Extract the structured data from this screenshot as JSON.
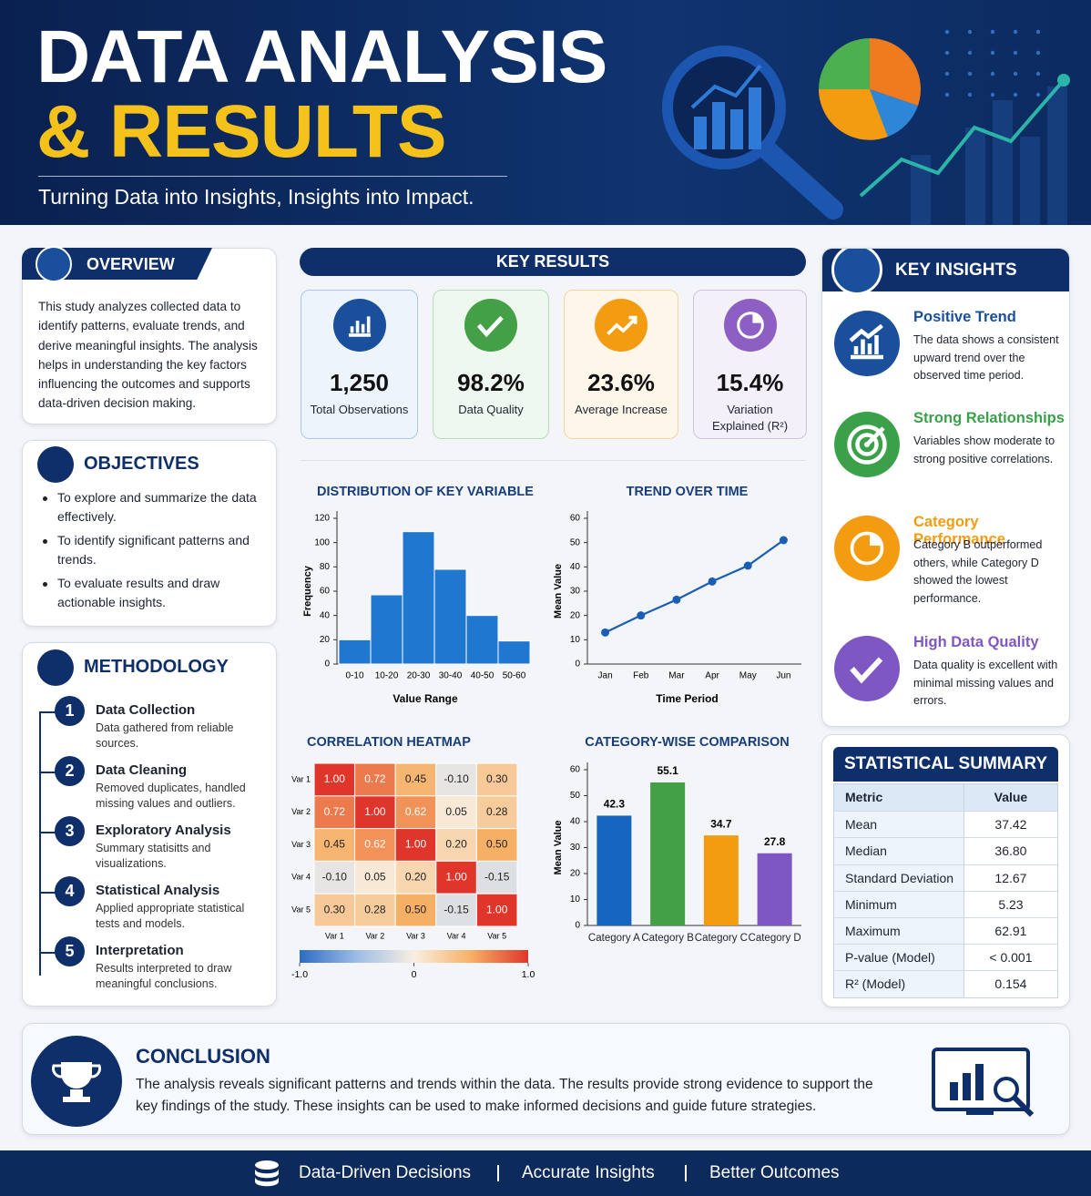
{
  "header": {
    "title_line1": "DATA ANALYSIS",
    "title_line2": "& RESULTS",
    "subtitle": "Turning Data into Insights, Insights into Impact."
  },
  "overview": {
    "title": "OVERVIEW",
    "text": "This study analyzes collected data to identify patterns, evaluate trends, and derive meaningful insights. The analysis helps in understanding the key factors influencing the outcomes and supports data-driven decision making."
  },
  "objectives": {
    "title": "OBJECTIVES",
    "items": [
      "To explore and summarize the data effectively.",
      "To identify significant patterns and trends.",
      "To evaluate results and draw actionable insights."
    ]
  },
  "methodology": {
    "title": "METHODOLOGY",
    "steps": [
      {
        "number": "1",
        "title": "Data Collection",
        "text": "Data gathered from reliable sources."
      },
      {
        "number": "2",
        "title": "Data Cleaning",
        "text": "Removed duplicates, handled missing values and outliers."
      },
      {
        "number": "3",
        "title": "Exploratory Analysis",
        "text": "Summary statisitts and visualizations."
      },
      {
        "number": "4",
        "title": "Statistical Analysis",
        "text": "Applied appropriate statistical tests and models."
      },
      {
        "number": "5",
        "title": "Interpretation",
        "text": "Results interpreted to draw meaningful conclusions."
      }
    ]
  },
  "key_results": {
    "title": "KEY RESULTS",
    "cards": [
      {
        "value": "1,250",
        "label": "Total Observations",
        "color": "#1a4f9c",
        "background": "#eef4fc",
        "border": "#a9c7ea"
      },
      {
        "value": "98.2%",
        "label": "Data Quality",
        "color": "#43a047",
        "background": "#eef8ee",
        "border": "#b5dcb5"
      },
      {
        "value": "23.6%",
        "label": "Average Increase",
        "color": "#f39c12",
        "background": "#fff6ea",
        "border": "#f3d3a3"
      },
      {
        "value": "15.4%",
        "label": "Variation Explained (R²)",
        "color": "#8e5fc2",
        "background": "#f4f0fa",
        "border": "#cfc0e6"
      }
    ]
  },
  "chart_data": [
    {
      "type": "histogram",
      "title": "DISTRIBUTION OF KEY VARIABLE",
      "categories": [
        "0-10",
        "10-20",
        "20-30",
        "30-40",
        "40-50",
        "50-60"
      ],
      "values": [
        20,
        57,
        109,
        78,
        40,
        19
      ],
      "color": "#1f77d0",
      "ylim": [
        0,
        120
      ],
      "yticks": [
        0,
        20,
        40,
        60,
        80,
        100,
        120
      ],
      "x_label": "Value Range",
      "y_label": "Frequency"
    },
    {
      "type": "line",
      "title": "TREND OVER TIME",
      "categories": [
        "Jan",
        "Feb",
        "Mar",
        "Apr",
        "May",
        "Jun"
      ],
      "values": [
        13,
        20,
        26.5,
        34,
        40.5,
        51
      ],
      "color": "#1a5fb4",
      "ylim": [
        0,
        60
      ],
      "yticks": [
        0,
        10,
        20,
        30,
        40,
        50,
        60
      ],
      "x_label": "Time Period",
      "y_label": "Mean Value"
    },
    {
      "type": "heatmap",
      "title": "CORRELATION HEATMAP",
      "rows": [
        "Var 1",
        "Var 2",
        "Var 3",
        "Var 4",
        "Var 5"
      ],
      "columns": [
        "Var 1",
        "Var 2",
        "Var 3",
        "Var 4",
        "Var 5"
      ],
      "values": [
        [
          1,
          0.72,
          0.45,
          -0.1,
          0.3
        ],
        [
          0.72,
          1,
          0.62,
          0.05,
          0.28
        ],
        [
          0.45,
          0.62,
          1,
          0.2,
          0.5
        ],
        [
          -0.1,
          0.05,
          0.2,
          1,
          -0.15
        ],
        [
          0.3,
          0.28,
          0.5,
          -0.15,
          1
        ]
      ],
      "value_labels": [
        [
          "1.00",
          "0.72",
          "0.45",
          "-0.10",
          "0.30"
        ],
        [
          "0.72",
          "1.00",
          "0.62",
          "0.05",
          "0.28"
        ],
        [
          "0.45",
          "0.62",
          "1.00",
          "0.20",
          "0.50"
        ],
        [
          "-0.10",
          "0.05",
          "0.20",
          "1.00",
          "-0.15"
        ],
        [
          "0.30",
          "0.28",
          "0.50",
          "-0.15",
          "1.00"
        ]
      ],
      "clim": [
        -1,
        1
      ],
      "colors": [
        "#2d6bc4",
        "#9dbde6",
        "#f8efe2",
        "#f6b066",
        "#e0352b"
      ],
      "colorbar_ticks": [
        {
          "value": -1,
          "label": "-1.0"
        },
        0,
        {
          "value": 1,
          "label": "1.0"
        }
      ]
    },
    {
      "type": "bar",
      "title": "CATEGORY-WISE COMPARISON",
      "categories": [
        "Category A",
        "Category B",
        "Category C",
        "Category D"
      ],
      "values": [
        42.3,
        55.1,
        34.7,
        27.8
      ],
      "colors": [
        "#1565c0",
        "#43a047",
        "#f39c12",
        "#7e57c2"
      ],
      "ylim": [
        0,
        60
      ],
      "yticks": [
        0,
        10,
        20,
        30,
        40,
        50,
        60
      ],
      "y_label": "Mean Value"
    }
  ],
  "key_insights": {
    "title": "KEY INSIGHTS",
    "items": [
      {
        "title": "Positive Trend",
        "text": "The data shows a consistent upward trend over the observed time period.",
        "color": "#1a4f9c"
      },
      {
        "title": "Strong Relationships",
        "text": "Variables show moderate to strong positive correlations.",
        "color": "#3aa04a"
      },
      {
        "title": "Category Performance",
        "text": "Category B outperformed others, while Category D showed the lowest performance.",
        "color": "#f39c12"
      },
      {
        "title": "High Data Quality",
        "text": "Data quality is excellent with minimal missing values and errors.",
        "color": "#7e57c2"
      }
    ]
  },
  "statistical_summary": {
    "title": "STATISTICAL SUMMARY",
    "table": {
      "header": [
        "Metric",
        "Value"
      ],
      "rows": [
        [
          "Mean",
          "37.42"
        ],
        [
          "Median",
          "36.80"
        ],
        [
          "Standard Deviation",
          "12.67"
        ],
        [
          "Minimum",
          "5.23"
        ],
        [
          "Maximum",
          "62.91"
        ],
        [
          "P-value (Model)",
          "< 0.001"
        ],
        [
          "R² (Model)",
          "0.154"
        ]
      ]
    }
  },
  "conclusion": {
    "title": "CONCLUSION",
    "text": "The analysis reveals significant patterns and trends within the data. The results provide strong evidence to support the key findings of the study. These insights can be used to make informed decisions and guide future strategies."
  },
  "footer": {
    "items": [
      "Data-Driven Decisions",
      "Accurate Insights",
      "Better Outcomes"
    ]
  }
}
